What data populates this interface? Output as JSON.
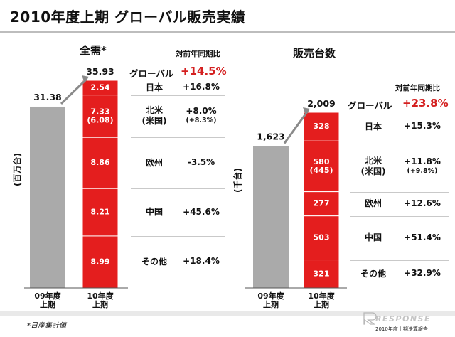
{
  "title": "2010年度上期 グローバル販売実績",
  "footnote": "*日産集計値",
  "footer_text": "2010年度上期決算報告",
  "logo_text": "RESPONSE",
  "colors": {
    "red": "#e41e1e",
    "gray": "#aaaaaa",
    "accent": "#d42020"
  },
  "left_panel": {
    "subtitle": "全需*",
    "yoy_header": "対前年同期比",
    "ylabel": "(百万台)",
    "global": {
      "label": "グローバル",
      "pct": "+14.5%"
    },
    "rows": [
      {
        "name": "日本",
        "pct": "+16.8%",
        "sub": ""
      },
      {
        "name": "北米\n(米国)",
        "pct": "+8.0%",
        "sub": "(+8.3%)"
      },
      {
        "name": "欧州",
        "pct": "-3.5%",
        "sub": ""
      },
      {
        "name": "中国",
        "pct": "+45.6%",
        "sub": ""
      },
      {
        "name": "その他",
        "pct": "+18.4%",
        "sub": ""
      }
    ]
  },
  "right_panel": {
    "subtitle": "販売台数",
    "yoy_header": "対前年同期比",
    "ylabel": "(千台)",
    "global": {
      "label": "グローバル",
      "pct": "+23.8%"
    },
    "rows": [
      {
        "name": "日本",
        "pct": "+15.3%",
        "sub": ""
      },
      {
        "name": "北米\n(米国)",
        "pct": "+11.8%",
        "sub": "(+9.8%)"
      },
      {
        "name": "欧州",
        "pct": "+12.6%",
        "sub": ""
      },
      {
        "name": "中国",
        "pct": "+51.4%",
        "sub": ""
      },
      {
        "name": "その他",
        "pct": "+32.9%",
        "sub": ""
      }
    ]
  },
  "chart_data": [
    {
      "type": "bar",
      "title": "全需*",
      "ylabel": "(百万台)",
      "categories": [
        "09年度\n上期",
        "10年度\n上期"
      ],
      "totals": [
        31.38,
        35.93
      ],
      "total_labels": [
        "31.38",
        "35.93"
      ],
      "stack_series": [
        {
          "name": "日本",
          "value": 2.54,
          "label": "2.54"
        },
        {
          "name": "北米(米国)",
          "value": 7.33,
          "label": "7.33\n(6.08)"
        },
        {
          "name": "欧州",
          "value": 8.86,
          "label": "8.86"
        },
        {
          "name": "中国",
          "value": 8.21,
          "label": "8.21"
        },
        {
          "name": "その他",
          "value": 8.99,
          "label": "8.99"
        }
      ]
    },
    {
      "type": "bar",
      "title": "販売台数",
      "ylabel": "(千台)",
      "categories": [
        "09年度\n上期",
        "10年度\n上期"
      ],
      "totals": [
        1623,
        2009
      ],
      "total_labels": [
        "1,623",
        "2,009"
      ],
      "stack_series": [
        {
          "name": "日本",
          "value": 328,
          "label": "328"
        },
        {
          "name": "北米(米国)",
          "value": 580,
          "label": "580\n(445)"
        },
        {
          "name": "欧州",
          "value": 277,
          "label": "277"
        },
        {
          "name": "中国",
          "value": 503,
          "label": "503"
        },
        {
          "name": "その他",
          "value": 321,
          "label": "321"
        }
      ]
    }
  ]
}
